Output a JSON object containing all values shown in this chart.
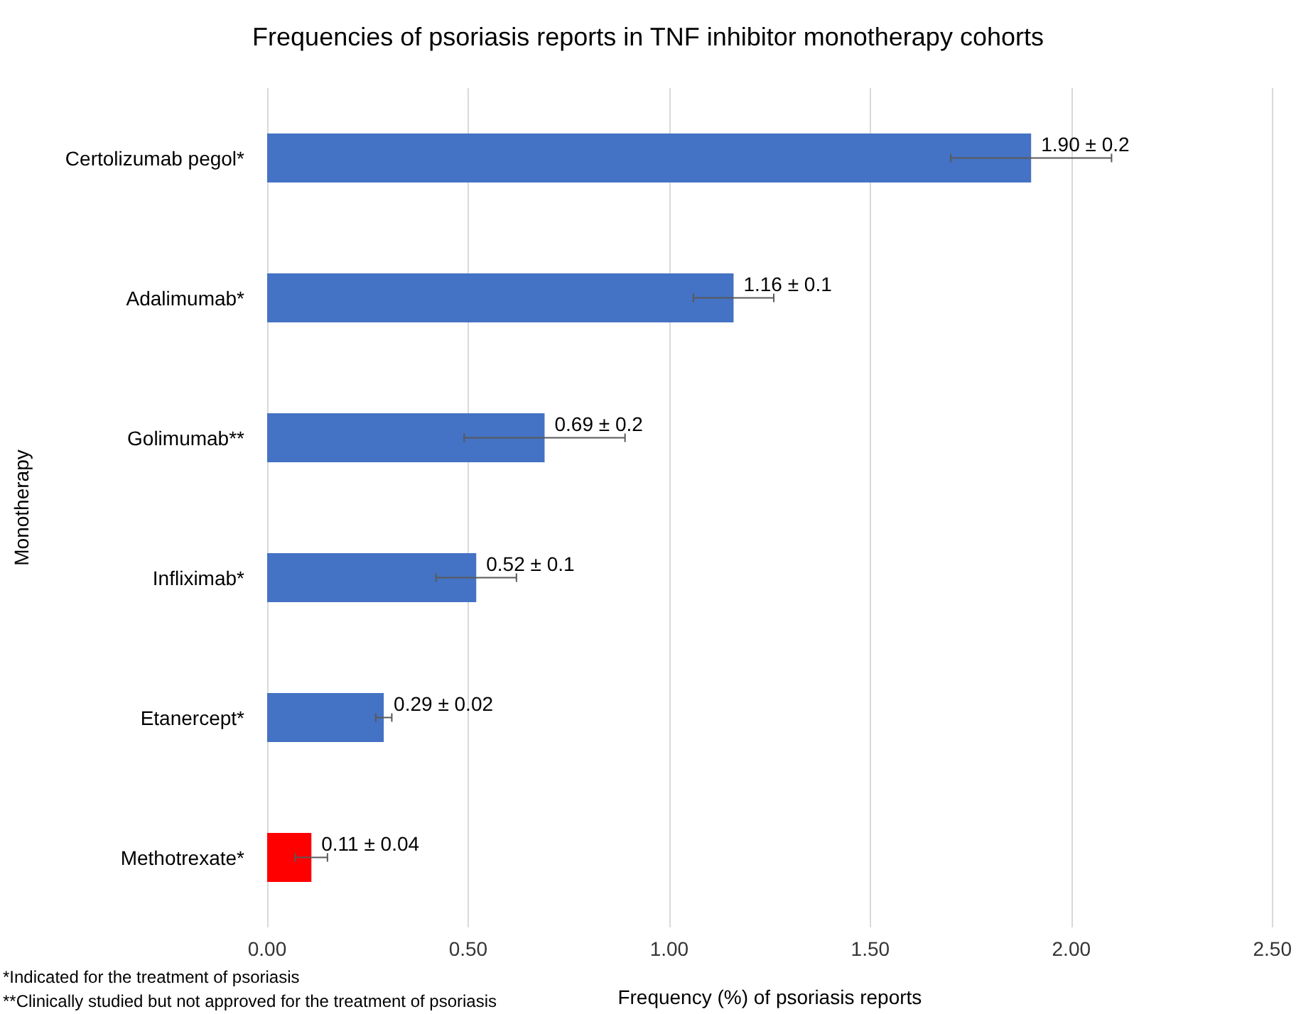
{
  "chart_data": {
    "type": "bar",
    "orientation": "horizontal",
    "title": "Frequencies of psoriasis reports in TNF inhibitor monotherapy cohorts",
    "xlabel": "Frequency (%) of psoriasis reports",
    "ylabel": "Monotherapy",
    "categories": [
      "Certolizumab pegol*",
      "Adalimumab*",
      "Golimumab**",
      "Infliximab*",
      "Etanercept*",
      "Methotrexate*"
    ],
    "values": [
      1.9,
      1.16,
      0.69,
      0.52,
      0.29,
      0.11
    ],
    "colors": [
      "#4472c4",
      "#4472c4",
      "#4472c4",
      "#4472c4",
      "#4472c4",
      "#ff0000"
    ],
    "errors": [
      0.2,
      0.1,
      0.2,
      0.1,
      0.02,
      0.04
    ],
    "value_labels": [
      "1.90 ± 0.2",
      "1.16 ± 0.1",
      "0.69 ± 0.2",
      "0.52 ± 0.1",
      "0.29 ± 0.02",
      "0.11 ± 0.04"
    ],
    "xlim": [
      0,
      2.5
    ],
    "xticks": [
      {
        "value": 0,
        "label": "0.00"
      },
      {
        "value": 0.5,
        "label": "0.50"
      },
      {
        "value": 1,
        "label": "1.00"
      },
      {
        "value": 1.5,
        "label": "1.50"
      },
      {
        "value": 2,
        "label": "2.00"
      },
      {
        "value": 2.5,
        "label": "2.50"
      }
    ],
    "grid": "x",
    "annotations": [
      "*Indicated for the treatment of psoriasis",
      "**Clinically studied but not approved for the treatment of psoriasis"
    ]
  }
}
